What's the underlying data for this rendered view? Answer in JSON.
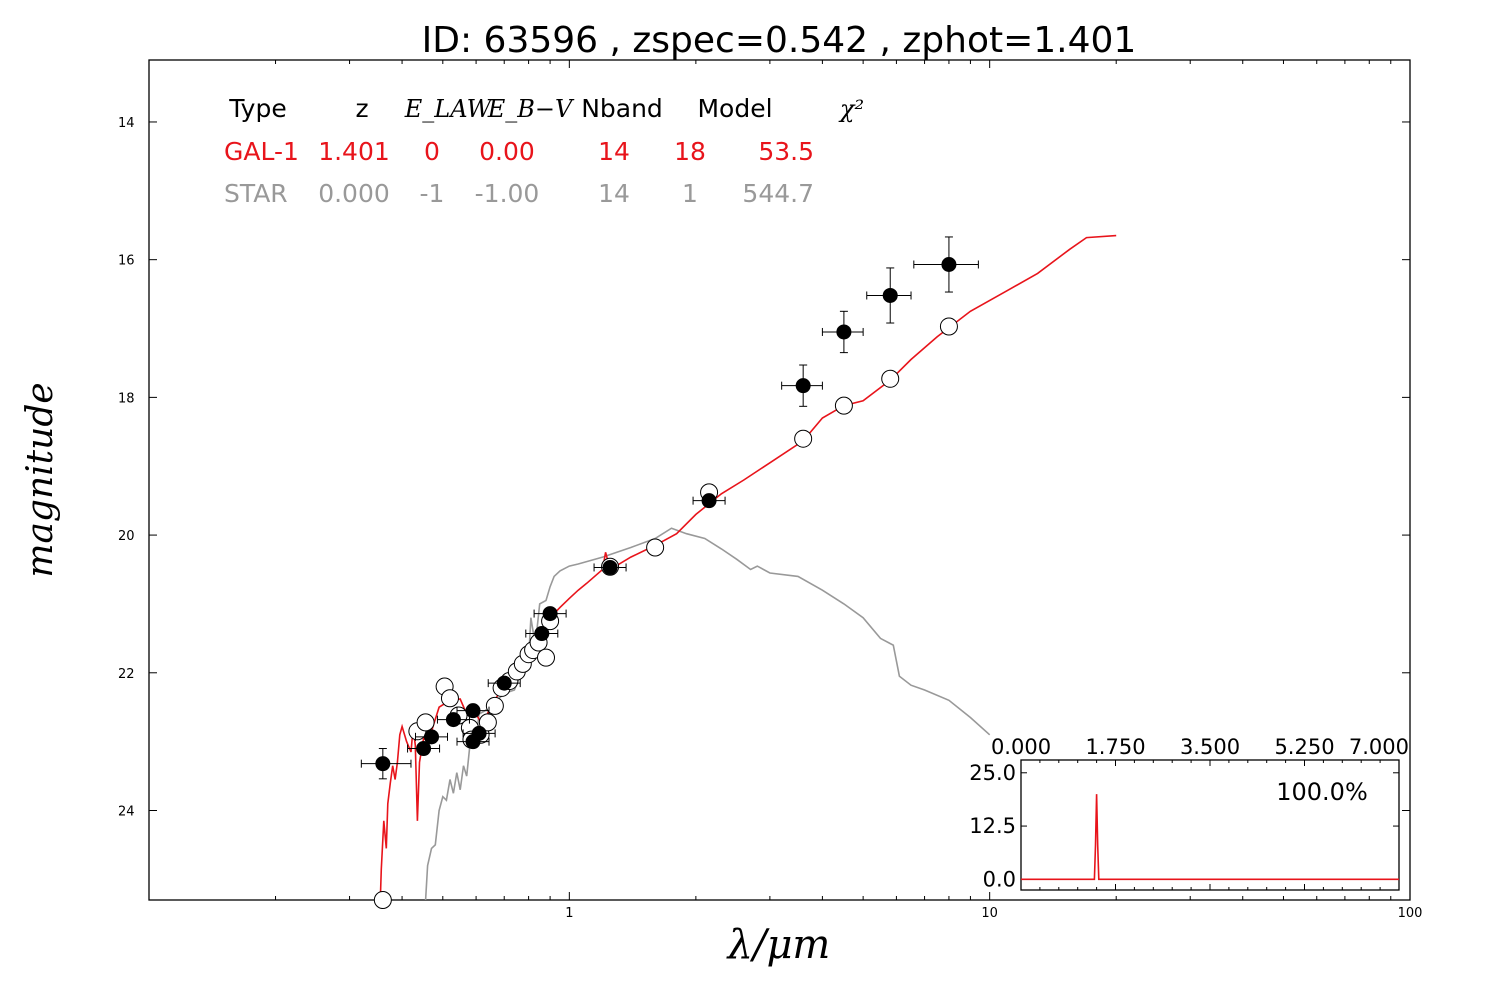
{
  "chart_data": {
    "type": "scatter",
    "title": "ID:  63596 , zspec=0.542 , zphot=1.401",
    "xlabel": "λ/μm",
    "ylabel": "magnitude",
    "x_scale": "log",
    "xlim": [
      0.1,
      100
    ],
    "ylim": [
      25.3,
      13.1
    ],
    "y_inverted": true,
    "x_ticks": [
      "1",
      "10",
      "100"
    ],
    "y_ticks": [
      "14",
      "16",
      "18",
      "20",
      "22",
      "24"
    ],
    "colors": {
      "galaxy": "#e8141b",
      "star": "#999999",
      "points": "#000000"
    },
    "fit_table": {
      "headers": [
        "Type",
        "z",
        "E_LAW",
        "E_B−V",
        "Nband",
        "Model",
        "χ²"
      ],
      "rows": [
        {
          "name": "GAL-1",
          "z": "1.401",
          "elaw": "0",
          "ebv": "0.00",
          "nband": "14",
          "model": "18",
          "chi2": "53.5",
          "color": "#e8141b"
        },
        {
          "name": "STAR",
          "z": "0.000",
          "elaw": "-1",
          "ebv": "-1.00",
          "nband": "14",
          "model": "1",
          "chi2": "544.7",
          "color": "#999999"
        }
      ]
    },
    "series": [
      {
        "kind": "observed",
        "marker": "filled-circle",
        "points": [
          {
            "x": 0.36,
            "y": 23.32,
            "xerr": [
              0.32,
              0.42
            ],
            "yerr": 0.22
          },
          {
            "x": 0.45,
            "y": 23.1
          },
          {
            "x": 0.47,
            "y": 22.93
          },
          {
            "x": 0.53,
            "y": 22.68
          },
          {
            "x": 0.59,
            "y": 22.55
          },
          {
            "x": 0.59,
            "y": 23.0
          },
          {
            "x": 0.61,
            "y": 22.88
          },
          {
            "x": 0.7,
            "y": 22.15
          },
          {
            "x": 0.86,
            "y": 21.43
          },
          {
            "x": 0.9,
            "y": 21.14
          },
          {
            "x": 1.25,
            "y": 20.47
          },
          {
            "x": 2.15,
            "y": 19.5
          },
          {
            "x": 3.6,
            "y": 17.83,
            "xerr": [
              3.2,
              4.0
            ],
            "yerr": 0.3
          },
          {
            "x": 4.5,
            "y": 17.05,
            "xerr": [
              4.0,
              5.0
            ],
            "yerr": 0.3
          },
          {
            "x": 5.8,
            "y": 16.52,
            "xerr": [
              5.1,
              6.5
            ],
            "yerr": 0.4
          },
          {
            "x": 8.0,
            "y": 16.07,
            "xerr": [
              6.6,
              9.4
            ],
            "yerr": 0.4
          }
        ]
      },
      {
        "kind": "model",
        "marker": "open-circle",
        "points": [
          {
            "x": 0.435,
            "y": 22.85
          },
          {
            "x": 0.455,
            "y": 22.72
          },
          {
            "x": 0.505,
            "y": 22.2
          },
          {
            "x": 0.52,
            "y": 22.37
          },
          {
            "x": 0.545,
            "y": 22.62
          },
          {
            "x": 0.58,
            "y": 22.8
          },
          {
            "x": 0.585,
            "y": 22.97
          },
          {
            "x": 0.615,
            "y": 22.9
          },
          {
            "x": 0.64,
            "y": 22.72
          },
          {
            "x": 0.665,
            "y": 22.48
          },
          {
            "x": 0.69,
            "y": 22.22
          },
          {
            "x": 0.72,
            "y": 22.12
          },
          {
            "x": 0.75,
            "y": 21.98
          },
          {
            "x": 0.775,
            "y": 21.87
          },
          {
            "x": 0.8,
            "y": 21.73
          },
          {
            "x": 0.82,
            "y": 21.67
          },
          {
            "x": 0.845,
            "y": 21.56
          },
          {
            "x": 0.88,
            "y": 21.78
          },
          {
            "x": 0.9,
            "y": 21.25
          },
          {
            "x": 1.25,
            "y": 20.46
          },
          {
            "x": 1.6,
            "y": 20.18
          },
          {
            "x": 2.15,
            "y": 19.38
          },
          {
            "x": 3.6,
            "y": 18.6
          },
          {
            "x": 4.5,
            "y": 18.12
          },
          {
            "x": 5.8,
            "y": 17.73
          },
          {
            "x": 8.0,
            "y": 16.97
          },
          {
            "x": 0.36,
            "y": 25.3
          }
        ]
      },
      {
        "kind": "galaxy-template",
        "line": [
          [
            0.355,
            25.3
          ],
          [
            0.357,
            24.85
          ],
          [
            0.362,
            24.15
          ],
          [
            0.367,
            24.55
          ],
          [
            0.37,
            23.9
          ],
          [
            0.375,
            23.6
          ],
          [
            0.38,
            23.35
          ],
          [
            0.385,
            23.55
          ],
          [
            0.39,
            23.3
          ],
          [
            0.395,
            22.9
          ],
          [
            0.4,
            22.78
          ],
          [
            0.41,
            23.0
          ],
          [
            0.42,
            23.15
          ],
          [
            0.425,
            22.8
          ],
          [
            0.43,
            23.05
          ],
          [
            0.435,
            24.15
          ],
          [
            0.44,
            23.3
          ],
          [
            0.45,
            22.95
          ],
          [
            0.46,
            23.0
          ],
          [
            0.47,
            22.85
          ],
          [
            0.49,
            22.5
          ],
          [
            0.52,
            22.4
          ],
          [
            0.55,
            22.38
          ],
          [
            0.57,
            22.6
          ],
          [
            0.6,
            22.6
          ],
          [
            0.62,
            22.75
          ],
          [
            0.65,
            22.5
          ],
          [
            0.68,
            22.3
          ],
          [
            0.72,
            22.1
          ],
          [
            0.77,
            21.9
          ],
          [
            0.82,
            21.65
          ],
          [
            0.86,
            21.45
          ],
          [
            0.9,
            21.2
          ],
          [
            0.95,
            21.05
          ],
          [
            1.0,
            20.92
          ],
          [
            1.05,
            20.8
          ],
          [
            1.1,
            20.7
          ],
          [
            1.2,
            20.5
          ],
          [
            1.22,
            20.25
          ],
          [
            1.25,
            20.5
          ],
          [
            1.4,
            20.32
          ],
          [
            1.6,
            20.15
          ],
          [
            1.8,
            19.98
          ],
          [
            2.0,
            19.7
          ],
          [
            2.3,
            19.4
          ],
          [
            2.6,
            19.2
          ],
          [
            3.0,
            18.95
          ],
          [
            3.6,
            18.63
          ],
          [
            4.0,
            18.3
          ],
          [
            4.5,
            18.12
          ],
          [
            5.0,
            18.05
          ],
          [
            5.8,
            17.75
          ],
          [
            6.5,
            17.45
          ],
          [
            7.5,
            17.12
          ],
          [
            9.0,
            16.75
          ],
          [
            11.0,
            16.45
          ],
          [
            13.0,
            16.2
          ],
          [
            15.5,
            15.85
          ],
          [
            17.0,
            15.68
          ],
          [
            20.0,
            15.65
          ]
        ]
      },
      {
        "kind": "star-template",
        "line": [
          [
            0.455,
            25.3
          ],
          [
            0.46,
            24.8
          ],
          [
            0.47,
            24.55
          ],
          [
            0.48,
            24.5
          ],
          [
            0.49,
            24.0
          ],
          [
            0.5,
            23.8
          ],
          [
            0.51,
            23.85
          ],
          [
            0.52,
            23.55
          ],
          [
            0.53,
            23.75
          ],
          [
            0.54,
            23.45
          ],
          [
            0.55,
            23.7
          ],
          [
            0.56,
            23.35
          ],
          [
            0.57,
            23.5
          ],
          [
            0.58,
            23.05
          ],
          [
            0.6,
            22.95
          ],
          [
            0.61,
            22.6
          ],
          [
            0.63,
            22.55
          ],
          [
            0.66,
            22.45
          ],
          [
            0.7,
            22.3
          ],
          [
            0.74,
            22.25
          ],
          [
            0.78,
            21.9
          ],
          [
            0.8,
            21.8
          ],
          [
            0.81,
            21.2
          ],
          [
            0.83,
            21.6
          ],
          [
            0.85,
            21.0
          ],
          [
            0.88,
            20.95
          ],
          [
            0.9,
            20.75
          ],
          [
            0.92,
            20.6
          ],
          [
            0.95,
            20.52
          ],
          [
            1.0,
            20.45
          ],
          [
            1.05,
            20.42
          ],
          [
            1.2,
            20.32
          ],
          [
            1.4,
            20.18
          ],
          [
            1.6,
            20.05
          ],
          [
            1.75,
            19.9
          ],
          [
            1.9,
            19.98
          ],
          [
            2.1,
            20.05
          ],
          [
            2.3,
            20.2
          ],
          [
            2.5,
            20.35
          ],
          [
            2.7,
            20.5
          ],
          [
            2.8,
            20.45
          ],
          [
            3.0,
            20.55
          ],
          [
            3.5,
            20.6
          ],
          [
            4.0,
            20.8
          ],
          [
            4.5,
            21.0
          ],
          [
            5.0,
            21.2
          ],
          [
            5.5,
            21.5
          ],
          [
            5.9,
            21.6
          ],
          [
            6.1,
            22.05
          ],
          [
            6.5,
            22.18
          ],
          [
            7.0,
            22.25
          ],
          [
            8.0,
            22.4
          ],
          [
            9.0,
            22.65
          ],
          [
            10.0,
            22.9
          ]
        ]
      }
    ],
    "inset": {
      "x_ticks": [
        "0.000",
        "1.750",
        "3.500",
        "5.250",
        "7.000"
      ],
      "y_ticks": [
        "25.0",
        "12.5",
        "0.0"
      ],
      "xlim": [
        0.0,
        7.0
      ],
      "ylim": [
        -2.5,
        28.0
      ],
      "percent_label": "100.0%",
      "pdz": [
        [
          0.0,
          0.0
        ],
        [
          1.0,
          0.0
        ],
        [
          1.36,
          0.0
        ],
        [
          1.38,
          8.0
        ],
        [
          1.4,
          20.0
        ],
        [
          1.42,
          8.0
        ],
        [
          1.44,
          0.0
        ],
        [
          2.0,
          0.0
        ],
        [
          7.0,
          0.0
        ]
      ]
    }
  }
}
